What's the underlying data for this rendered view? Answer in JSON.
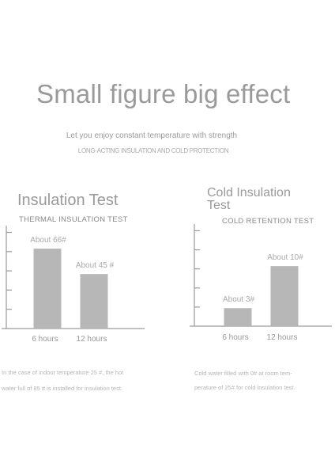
{
  "header": {
    "title": "Small figure big effect",
    "subtitle": "Let you enjoy constant temperature with strength",
    "tagline": "LONG-ACTING INSULATION AND COLD PROTECTION"
  },
  "colors": {
    "bar": "#b7b7b7",
    "axis": "#9a9a9a",
    "label": "#aaaaaa"
  },
  "chart_data": [
    {
      "type": "bar",
      "title": "Insulation Test",
      "subtitle": "THERMAL INSULATION TEST",
      "categories": [
        "6 hours",
        "12 hours"
      ],
      "values": [
        66,
        45
      ],
      "data_labels": [
        "About 66#",
        "About 45 #"
      ],
      "ylim": [
        0,
        85
      ],
      "y_ticks": 5,
      "grid": false,
      "note": [
        "In the case of indoor temperature 25 #, the hot",
        "water full of 85 # is installed for insulation test."
      ]
    },
    {
      "type": "bar",
      "title": "Cold Insulation Test",
      "subtitle": "COLD RETENTION TEST",
      "categories": [
        "6 hours",
        "12 hours"
      ],
      "values": [
        3,
        10
      ],
      "data_labels": [
        "About 3#",
        "About 10#"
      ],
      "ylim": [
        0,
        17
      ],
      "y_ticks": 5,
      "grid": false,
      "note": [
        "Cold water filled with 0# at room tem-",
        "perature of 25# for cold insulation test."
      ]
    }
  ]
}
